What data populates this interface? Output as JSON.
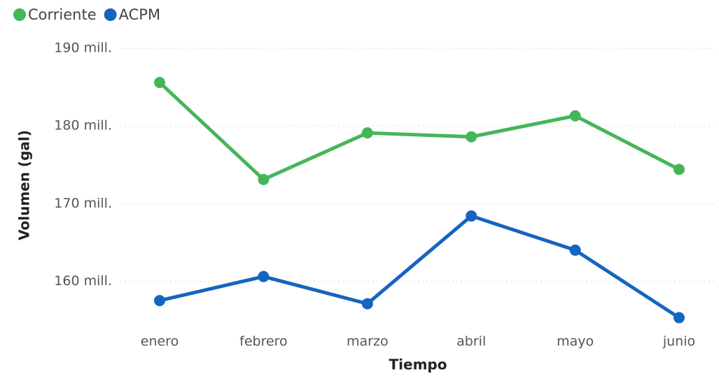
{
  "chart_data": {
    "type": "line",
    "categories": [
      "enero",
      "febrero",
      "marzo",
      "abril",
      "mayo",
      "junio"
    ],
    "series": [
      {
        "name": "Corriente",
        "color": "#46b55a",
        "values": [
          185.6,
          173.1,
          179.1,
          178.6,
          181.3,
          174.4
        ]
      },
      {
        "name": "ACPM",
        "color": "#1565c0",
        "values": [
          157.5,
          160.6,
          157.1,
          168.4,
          164.0,
          155.3
        ]
      }
    ],
    "xlabel": "Tiempo",
    "ylabel": "Volumen (gal)",
    "ylim": [
      154,
      191
    ],
    "yticks": [
      {
        "value": 160,
        "label": "160 mill."
      },
      {
        "value": 170,
        "label": "170 mill."
      },
      {
        "value": 180,
        "label": "180 mill."
      },
      {
        "value": 190,
        "label": "190 mill."
      }
    ],
    "grid": true,
    "legend": "top-left"
  }
}
